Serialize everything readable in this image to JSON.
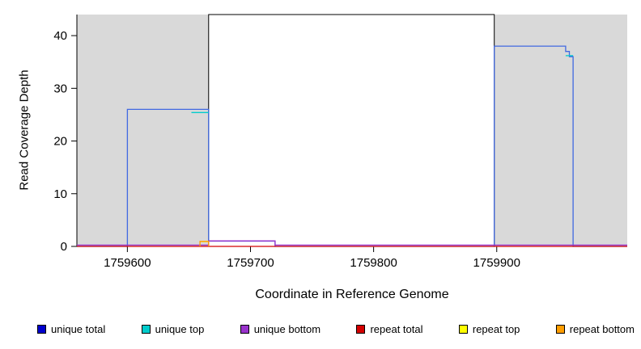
{
  "chart_data": {
    "type": "line",
    "title": "",
    "xlabel": "Coordinate in Reference Genome",
    "ylabel": "Read Coverage Depth",
    "xlim": [
      1759559,
      1760006
    ],
    "ylim": [
      0,
      44
    ],
    "x_ticks": [
      1759600,
      1759700,
      1759800,
      1759900
    ],
    "y_ticks": [
      0,
      10,
      20,
      30,
      40
    ],
    "grid": false,
    "legend_position": "bottom",
    "plot_background": "#d9d9d9",
    "highlight_region": {
      "x0": 1759666,
      "x1": 1759898,
      "fill": "#ffffff",
      "border": "#000000"
    },
    "series": [
      {
        "name": "unique total",
        "color": "#4169e1",
        "segments": [
          [
            [
              1759559,
              0
            ],
            [
              1759600,
              0
            ],
            [
              1759600,
              26
            ],
            [
              1759666,
              26
            ],
            [
              1759666,
              1
            ],
            [
              1759720,
              1
            ],
            [
              1759720,
              0
            ],
            [
              1759898,
              0
            ],
            [
              1759898,
              38
            ],
            [
              1759956,
              38
            ],
            [
              1759956,
              37
            ],
            [
              1759959,
              37
            ],
            [
              1759959,
              36
            ],
            [
              1759962,
              36
            ],
            [
              1759962,
              0
            ],
            [
              1760006,
              0
            ]
          ]
        ]
      },
      {
        "name": "unique top",
        "color": "#00cccc",
        "segments": [
          [
            [
              1759652,
              25.4
            ],
            [
              1759666,
              25.4
            ]
          ],
          [
            [
              1759956,
              36.2
            ],
            [
              1759962,
              36.2
            ]
          ]
        ]
      },
      {
        "name": "unique bottom",
        "color": "#9933cc",
        "segments": [
          [
            [
              1759559,
              0.25
            ],
            [
              1759666,
              0.25
            ],
            [
              1759666,
              1.05
            ],
            [
              1759720,
              1.05
            ],
            [
              1759720,
              0.25
            ],
            [
              1760006,
              0.25
            ]
          ]
        ]
      },
      {
        "name": "repeat total",
        "color": "#d40000",
        "segments": [
          [
            [
              1759559,
              0
            ],
            [
              1760006,
              0
            ]
          ]
        ]
      },
      {
        "name": "repeat top",
        "color": "#ffff00",
        "segments": [
          [
            [
              1759660,
              0.9
            ],
            [
              1759665,
              0.9
            ]
          ]
        ]
      },
      {
        "name": "repeat bottom",
        "color": "#ff9d00",
        "segments": [
          [
            [
              1759659,
              0
            ],
            [
              1759659,
              0.95
            ],
            [
              1759666,
              0.95
            ],
            [
              1759666,
              0
            ]
          ]
        ]
      }
    ]
  },
  "legend": {
    "items": [
      {
        "label": "unique total",
        "color": "#0000cd"
      },
      {
        "label": "unique top",
        "color": "#00cccc"
      },
      {
        "label": "unique bottom",
        "color": "#9933cc"
      },
      {
        "label": "repeat total",
        "color": "#d40000"
      },
      {
        "label": "repeat top",
        "color": "#ffff00"
      },
      {
        "label": "repeat bottom",
        "color": "#ff9d00"
      }
    ]
  }
}
